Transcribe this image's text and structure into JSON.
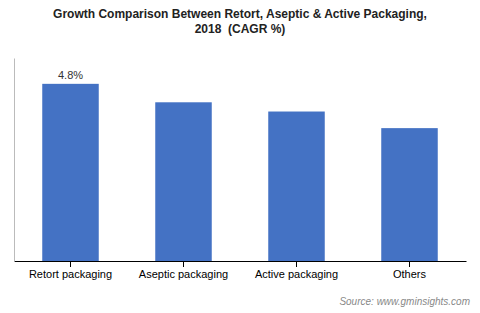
{
  "chart_data": {
    "type": "bar",
    "title": "Growth Comparison Between Retort, Aseptic & Active Packaging,\n2018  (CAGR %)",
    "categories": [
      "Retort packaging",
      "Aseptic packaging",
      "Active packaging",
      "Others"
    ],
    "values": [
      4.8,
      4.3,
      4.05,
      3.6
    ],
    "color": "#4472C4",
    "ylim": [
      0,
      5.5
    ],
    "grid": false,
    "tick_labels": "x",
    "annotations": [
      {
        "text": "4.8%",
        "x": "Retort packaging",
        "y": 4.8
      }
    ],
    "source": "Source: www.gminsights.com"
  }
}
